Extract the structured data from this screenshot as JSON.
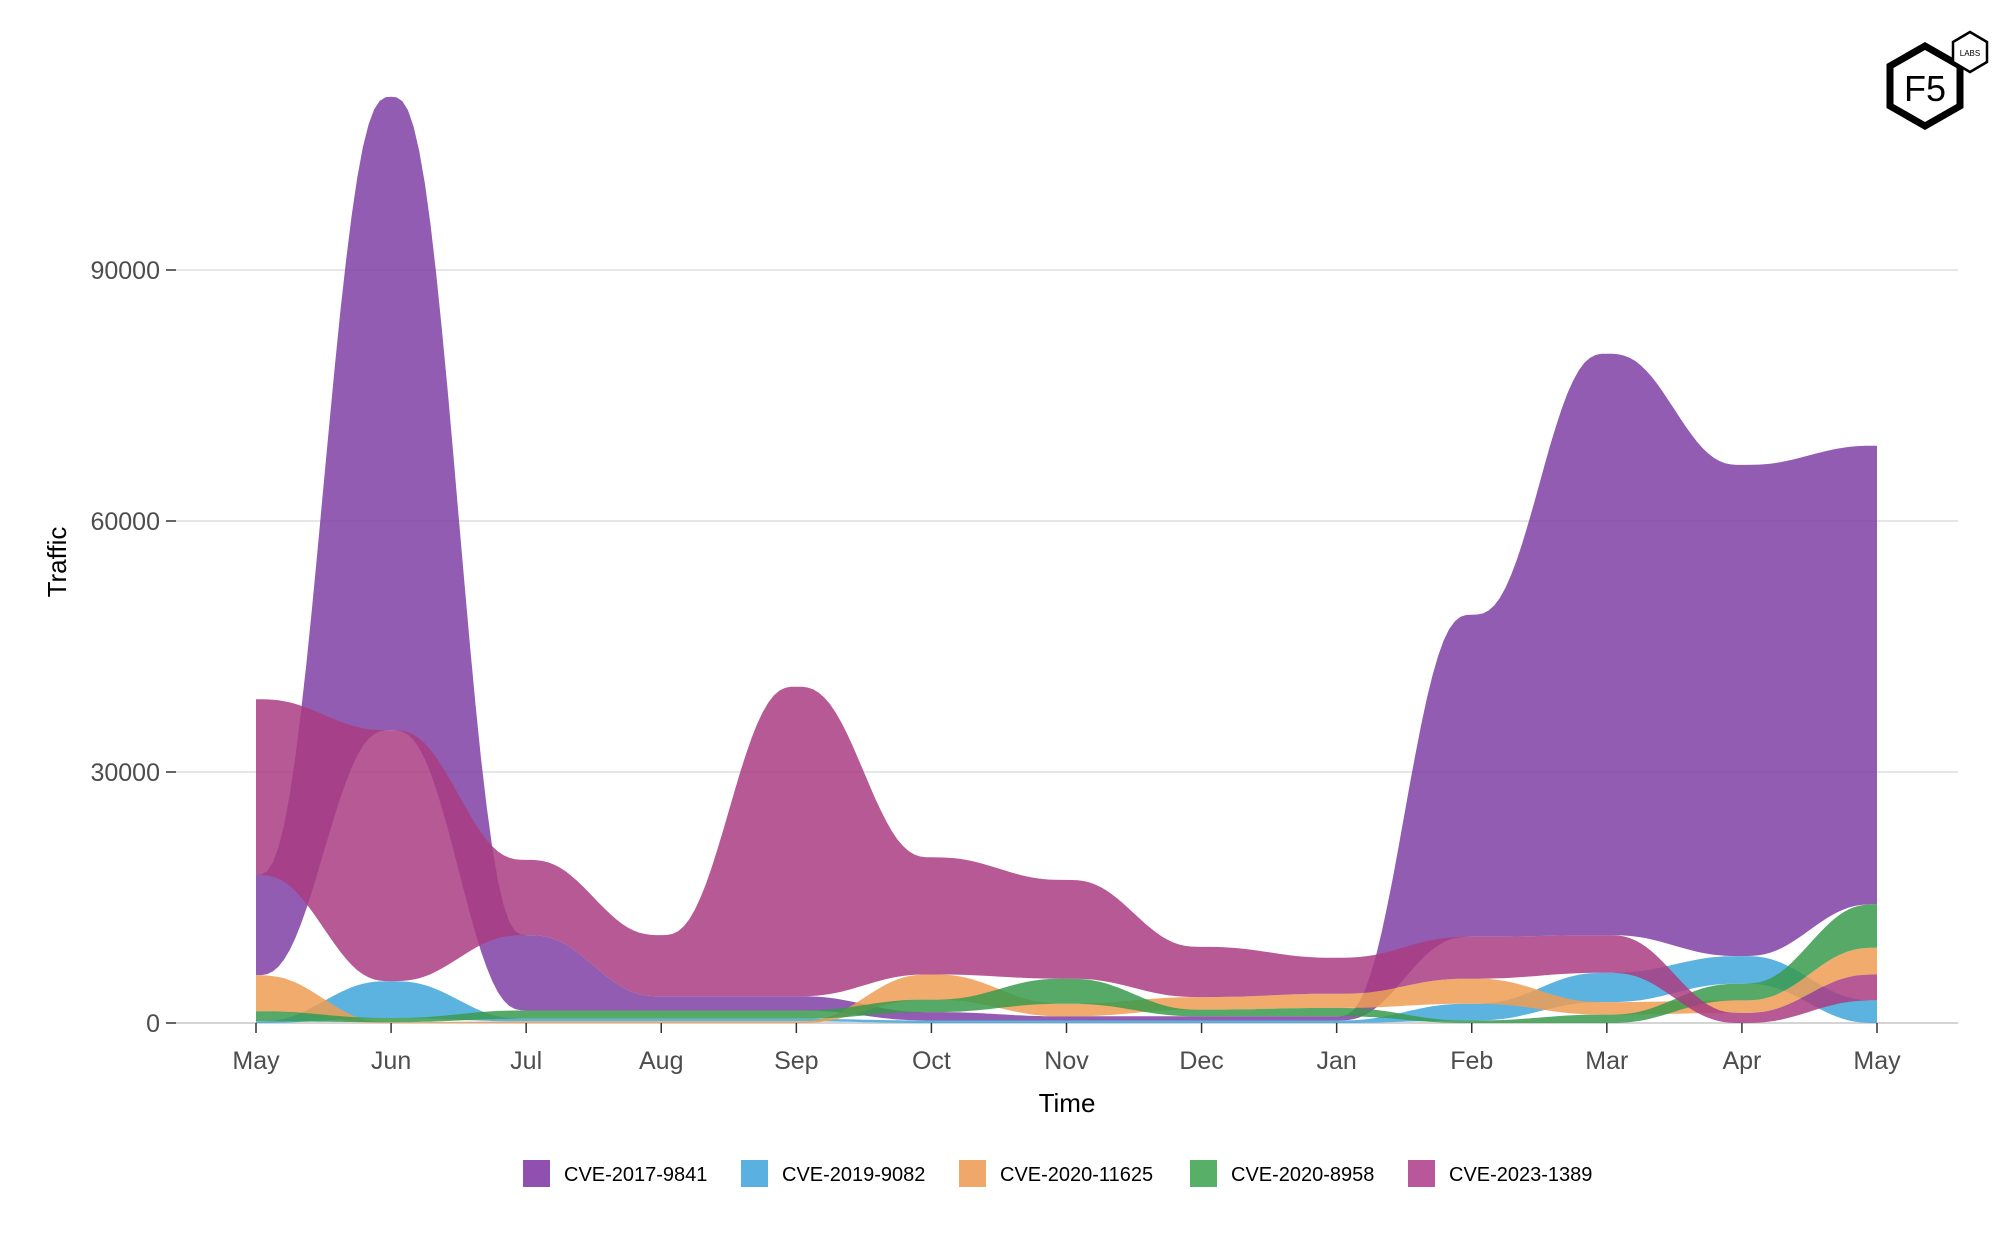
{
  "chart_data": {
    "type": "area",
    "subtype": "ranked ribbon (stacked, ordered by value per month)",
    "title": "",
    "xlabel": "Time",
    "ylabel": "Traffic",
    "ylim": [
      0,
      115000
    ],
    "yticks": [
      0,
      30000,
      60000,
      90000
    ],
    "ytick_labels": [
      "0",
      "30000",
      "60000",
      "90000"
    ],
    "grid": true,
    "legend": "bottom",
    "categories": [
      "May",
      "Jun",
      "Jul",
      "Aug",
      "Sep",
      "Oct",
      "Nov",
      "Dec",
      "Jan",
      "Feb",
      "Mar",
      "Apr",
      "May"
    ],
    "series": [
      {
        "name": "CVE-2017-9841",
        "color": "#7E3FA3",
        "legend_color": "#9050B0",
        "values": [
          12000,
          75700,
          9000,
          1700,
          1700,
          1000,
          500,
          500,
          500,
          38500,
          69500,
          58700,
          54800
        ]
      },
      {
        "name": "CVE-2019-9082",
        "color": "#3FA6DA",
        "legend_color": "#5AB0DE",
        "values": [
          200,
          4400,
          300,
          300,
          300,
          300,
          300,
          300,
          300,
          2000,
          3500,
          3300,
          2700
        ]
      },
      {
        "name": "CVE-2020-11625",
        "color": "#EE9C52",
        "legend_color": "#F0A86A",
        "values": [
          4300,
          100,
          200,
          200,
          200,
          3000,
          1500,
          1500,
          1700,
          3000,
          1500,
          1500,
          3200
        ]
      },
      {
        "name": "CVE-2020-8958",
        "color": "#389A4C",
        "legend_color": "#58B068",
        "values": [
          1200,
          500,
          1000,
          1000,
          1000,
          1500,
          3000,
          800,
          1000,
          300,
          1000,
          2000,
          5200
        ]
      },
      {
        "name": "CVE-2023-1389",
        "color": "#A93C83",
        "legend_color": "#B8579A",
        "values": [
          21000,
          30000,
          9000,
          7300,
          37000,
          14000,
          11800,
          6000,
          4300,
          5000,
          4500,
          1200,
          3100
        ]
      }
    ]
  },
  "logo": {
    "text": "F5",
    "sub": "LABS"
  }
}
